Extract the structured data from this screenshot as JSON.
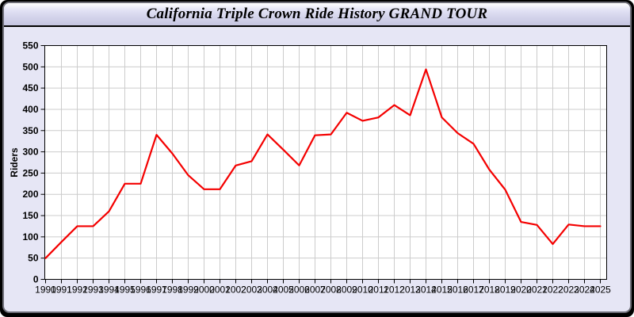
{
  "window": {
    "title": "California Triple Crown Ride History GRAND TOUR"
  },
  "theme": {
    "panel_bg": "#e6e6f5",
    "plot_bg": "#ffffff",
    "frame_color": "#000000",
    "grid_color": "#cccccc",
    "line_color": "#f40000",
    "text_color": "#000000"
  },
  "chart_data": {
    "type": "line",
    "title": "California Triple Crown Ride History GRAND TOUR",
    "xlabel": "",
    "ylabel": "Riders",
    "x": [
      1990,
      1991,
      1992,
      1993,
      1994,
      1995,
      1996,
      1997,
      1998,
      1999,
      2000,
      2001,
      2002,
      2003,
      2004,
      2005,
      2006,
      2007,
      2008,
      2009,
      2010,
      2011,
      2012,
      2013,
      2014,
      2015,
      2016,
      2017,
      2018,
      2019,
      2020,
      2021,
      2022,
      2023,
      2024,
      2025
    ],
    "series": [
      {
        "name": "Riders",
        "values": [
          50,
          88,
          125,
          125,
          160,
          225,
          225,
          340,
          296,
          245,
          212,
          212,
          268,
          278,
          341,
          305,
          268,
          339,
          341,
          392,
          373,
          381,
          410,
          386,
          494,
          381,
          344,
          319,
          258,
          211,
          135,
          128,
          83,
          129,
          125,
          125
        ]
      }
    ],
    "ylim": [
      0,
      550
    ],
    "ytick_step": 50,
    "grid": true,
    "legend": "none"
  }
}
